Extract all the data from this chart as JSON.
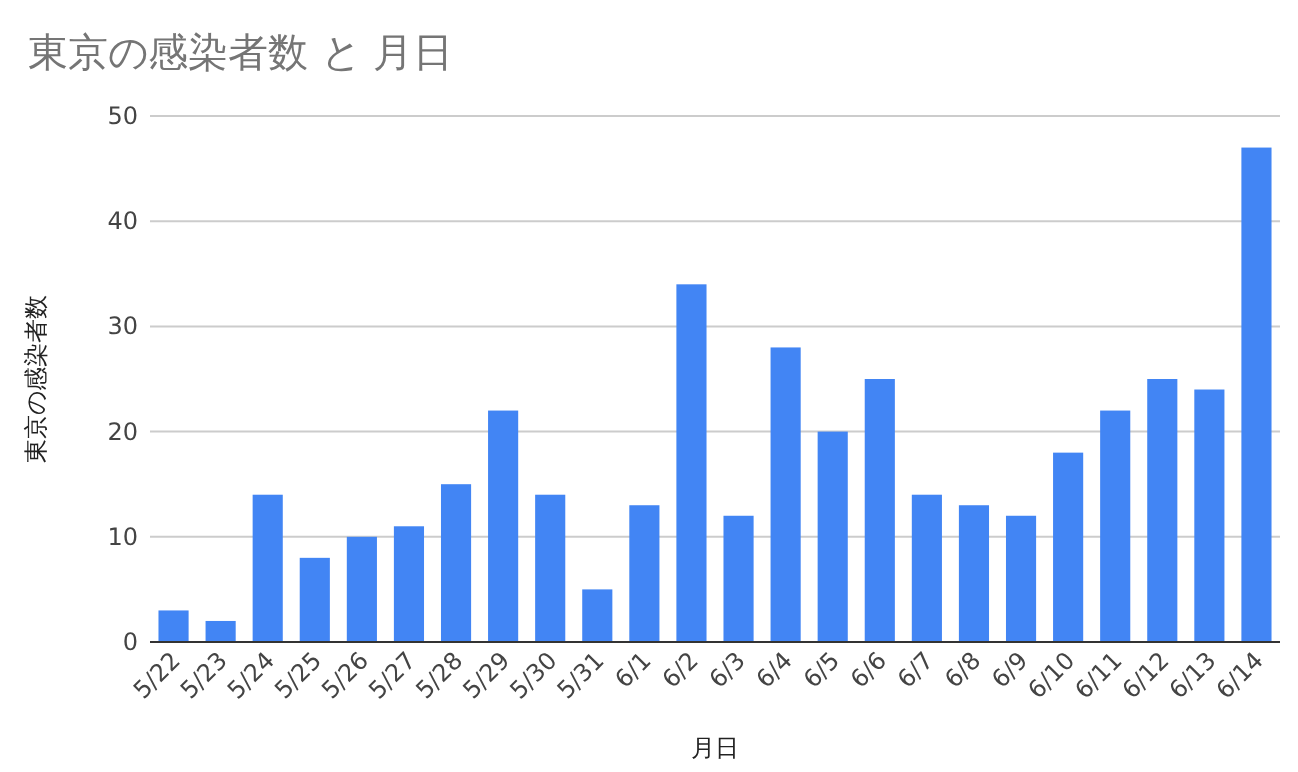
{
  "chart_data": {
    "type": "bar",
    "title": "東京の感染者数 と 月日",
    "xlabel": "月日",
    "ylabel": "東京の感染者数",
    "categories": [
      "5/22",
      "5/23",
      "5/24",
      "5/25",
      "5/26",
      "5/27",
      "5/28",
      "5/29",
      "5/30",
      "5/31",
      "6/1",
      "6/2",
      "6/3",
      "6/4",
      "6/5",
      "6/6",
      "6/7",
      "6/8",
      "6/9",
      "6/10",
      "6/11",
      "6/12",
      "6/13",
      "6/14"
    ],
    "values": [
      3,
      2,
      14,
      8,
      10,
      11,
      15,
      22,
      14,
      5,
      13,
      34,
      12,
      28,
      20,
      25,
      14,
      13,
      12,
      18,
      22,
      25,
      24,
      47
    ],
    "color": "#4285f4",
    "ylim": [
      0,
      50
    ],
    "yticks": [
      0,
      10,
      20,
      30,
      40,
      50
    ],
    "grid": "y"
  }
}
